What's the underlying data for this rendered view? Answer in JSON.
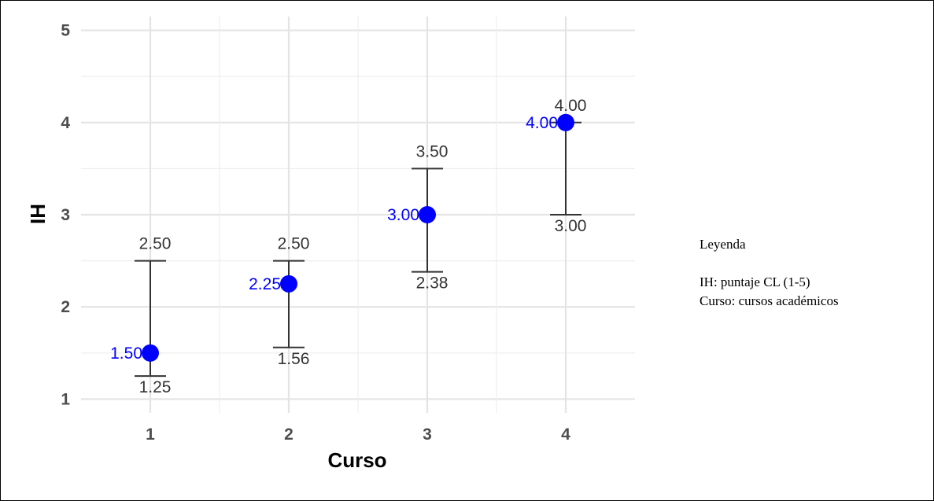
{
  "chart_data": {
    "type": "scatter",
    "xlabel": "Curso",
    "ylabel": "IH",
    "categories": [
      "1",
      "2",
      "3",
      "4"
    ],
    "ylim": [
      0.85,
      5.15
    ],
    "yticks": [
      1,
      2,
      3,
      4,
      5
    ],
    "grid": true,
    "point_color": "#0000ff",
    "errorbar_color": "#333333",
    "points": [
      {
        "x": "1",
        "value": 1.5,
        "label": "1.50",
        "upper": 2.5,
        "upper_label": "2.50",
        "lower": 1.25,
        "lower_label": "1.25"
      },
      {
        "x": "2",
        "value": 2.25,
        "label": "2.25",
        "upper": 2.5,
        "upper_label": "2.50",
        "lower": 1.56,
        "lower_label": "1.56"
      },
      {
        "x": "3",
        "value": 3.0,
        "label": "3.00",
        "upper": 3.5,
        "upper_label": "3.50",
        "lower": 2.38,
        "lower_label": "2.38"
      },
      {
        "x": "4",
        "value": 4.0,
        "label": "4.00",
        "upper": 4.0,
        "upper_label": "4.00",
        "lower": 3.0,
        "lower_label": "3.00"
      }
    ]
  },
  "legend": {
    "title": "Leyenda",
    "lines": [
      "IH: puntaje CL (1-5)",
      "Curso: cursos académicos"
    ]
  }
}
